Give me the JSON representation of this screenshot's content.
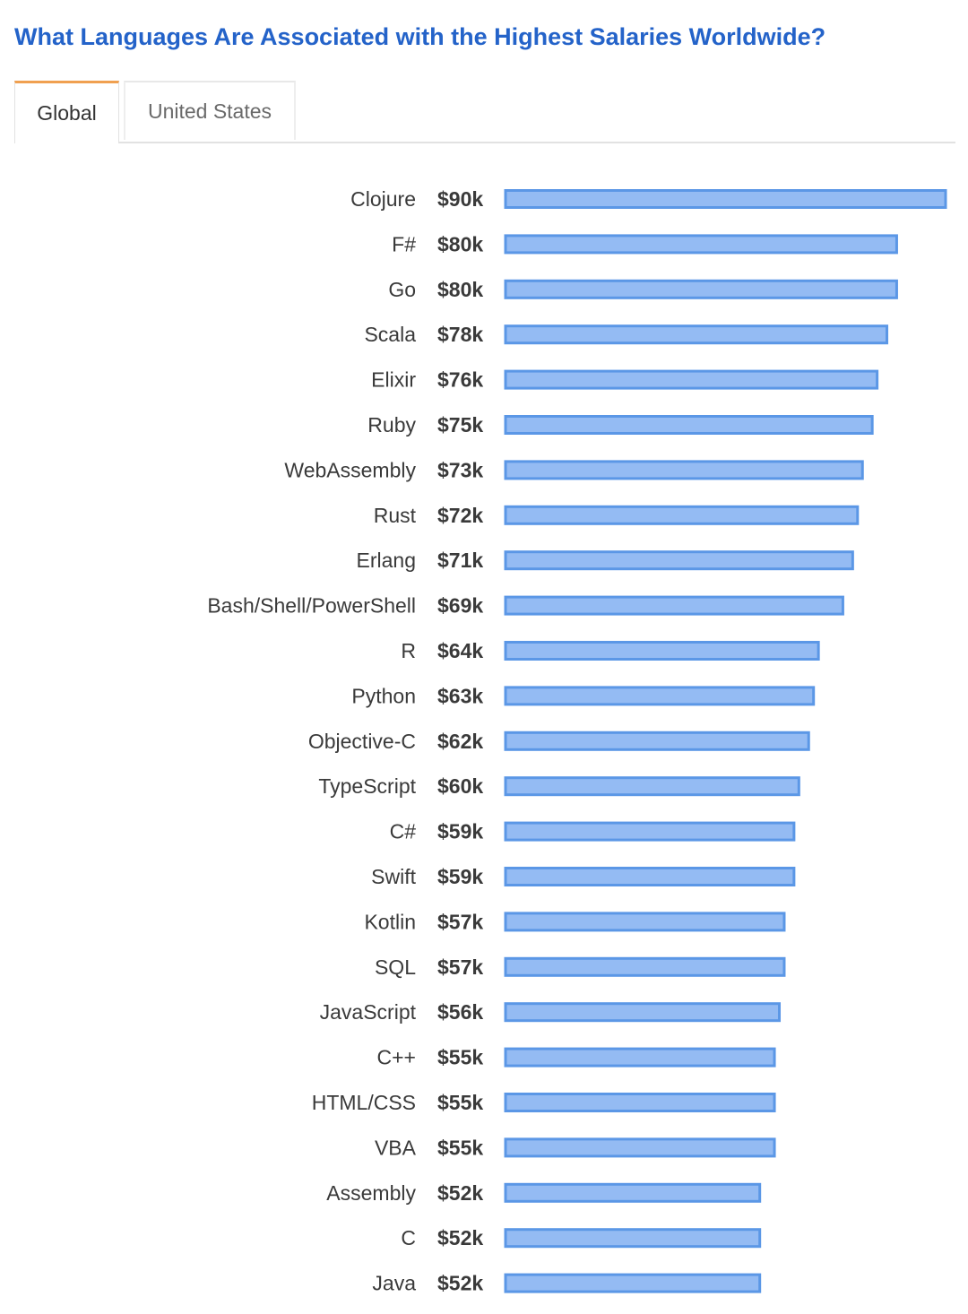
{
  "title": "What Languages Are Associated with the Highest Salaries Worldwide?",
  "tabs": [
    {
      "label": "Global",
      "active": true
    },
    {
      "label": "United States",
      "active": false
    }
  ],
  "colors": {
    "title": "#2463c9",
    "bar_fill": "#94bbf3",
    "bar_stroke": "#5b97e6",
    "active_tab_accent": "#f0a050"
  },
  "chart_data": {
    "type": "bar",
    "orientation": "horizontal",
    "categories": [
      "Clojure",
      "F#",
      "Go",
      "Scala",
      "Elixir",
      "Ruby",
      "WebAssembly",
      "Rust",
      "Erlang",
      "Bash/Shell/PowerShell",
      "R",
      "Python",
      "Objective-C",
      "TypeScript",
      "C#",
      "Swift",
      "Kotlin",
      "SQL",
      "JavaScript",
      "C++",
      "HTML/CSS",
      "VBA",
      "Assembly",
      "C",
      "Java"
    ],
    "values": [
      90,
      80,
      80,
      78,
      76,
      75,
      73,
      72,
      71,
      69,
      64,
      63,
      62,
      60,
      59,
      59,
      57,
      57,
      56,
      55,
      55,
      55,
      52,
      52,
      52
    ],
    "value_labels": [
      "$90k",
      "$80k",
      "$80k",
      "$78k",
      "$76k",
      "$75k",
      "$73k",
      "$72k",
      "$71k",
      "$69k",
      "$64k",
      "$63k",
      "$62k",
      "$60k",
      "$59k",
      "$59k",
      "$57k",
      "$57k",
      "$56k",
      "$55k",
      "$55k",
      "$55k",
      "$52k",
      "$52k",
      "$52k"
    ],
    "xlim": [
      0,
      90
    ],
    "grid": false,
    "legend": false
  }
}
